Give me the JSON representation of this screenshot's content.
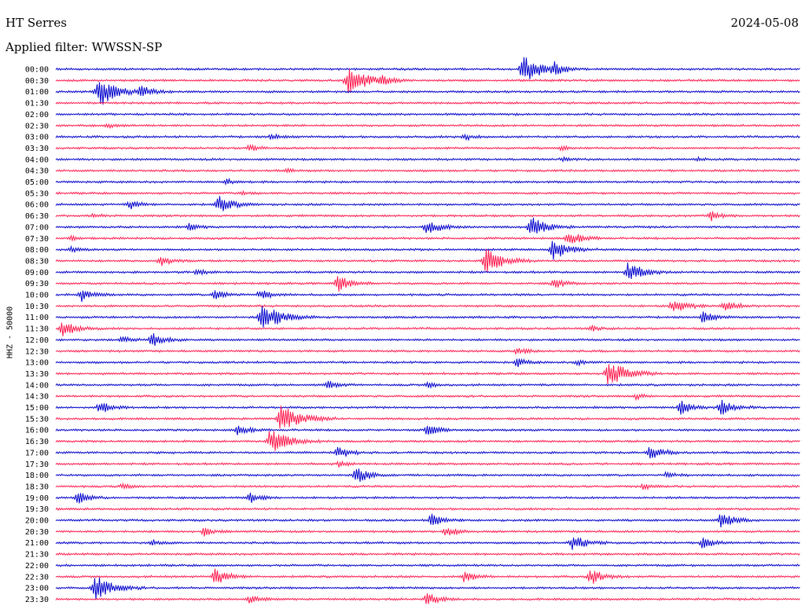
{
  "header": {
    "station": "HT Serres",
    "date": "2024-05-08",
    "filter": "Applied filter: WWSSN-SP"
  },
  "chart_data": {
    "type": "line",
    "title": "HT Serres",
    "subtitle": "Applied filter: WWSSN-SP",
    "ylabel": "HHZ - 50000",
    "grid": false,
    "legend": "none",
    "colors": {
      "even": "#0000cc",
      "odd": "#ff1a4d"
    },
    "rows": [
      {
        "label": "00:00",
        "events": [
          [
            0.63,
            1.0
          ],
          [
            0.67,
            0.35
          ]
        ]
      },
      {
        "label": "00:30",
        "events": [
          [
            0.395,
            1.0
          ],
          [
            0.44,
            0.25
          ]
        ]
      },
      {
        "label": "01:00",
        "events": [
          [
            0.06,
            1.0
          ],
          [
            0.115,
            0.4
          ]
        ]
      },
      {
        "label": "01:30",
        "events": []
      },
      {
        "label": "02:00",
        "events": []
      },
      {
        "label": "02:30",
        "events": [
          [
            0.07,
            0.15
          ]
        ]
      },
      {
        "label": "03:00",
        "events": [
          [
            0.29,
            0.2
          ],
          [
            0.55,
            0.25
          ]
        ]
      },
      {
        "label": "03:30",
        "events": [
          [
            0.26,
            0.25
          ],
          [
            0.68,
            0.15
          ]
        ]
      },
      {
        "label": "04:00",
        "events": [
          [
            0.68,
            0.15
          ],
          [
            0.86,
            0.12
          ]
        ]
      },
      {
        "label": "04:30",
        "events": [
          [
            0.31,
            0.12
          ]
        ]
      },
      {
        "label": "05:00",
        "events": [
          [
            0.23,
            0.2
          ]
        ]
      },
      {
        "label": "05:30",
        "events": [
          [
            0.25,
            0.15
          ]
        ]
      },
      {
        "label": "06:00",
        "events": [
          [
            0.1,
            0.3
          ],
          [
            0.22,
            0.6
          ]
        ]
      },
      {
        "label": "06:30",
        "events": [
          [
            0.05,
            0.15
          ],
          [
            0.88,
            0.35
          ]
        ]
      },
      {
        "label": "07:00",
        "events": [
          [
            0.18,
            0.25
          ],
          [
            0.5,
            0.55
          ],
          [
            0.64,
            0.7
          ]
        ]
      },
      {
        "label": "07:30",
        "events": [
          [
            0.69,
            0.55
          ],
          [
            0.02,
            0.15
          ]
        ]
      },
      {
        "label": "08:00",
        "events": [
          [
            0.67,
            0.75
          ],
          [
            0.02,
            0.2
          ]
        ]
      },
      {
        "label": "08:30",
        "events": [
          [
            0.14,
            0.35
          ],
          [
            0.58,
            0.85
          ]
        ]
      },
      {
        "label": "09:00",
        "events": [
          [
            0.77,
            0.7
          ],
          [
            0.19,
            0.2
          ]
        ]
      },
      {
        "label": "09:30",
        "events": [
          [
            0.38,
            0.55
          ],
          [
            0.67,
            0.35
          ]
        ]
      },
      {
        "label": "10:00",
        "events": [
          [
            0.035,
            0.45
          ],
          [
            0.215,
            0.4
          ],
          [
            0.275,
            0.35
          ]
        ]
      },
      {
        "label": "10:30",
        "events": [
          [
            0.83,
            0.55
          ],
          [
            0.9,
            0.45
          ]
        ]
      },
      {
        "label": "11:00",
        "events": [
          [
            0.28,
            1.0
          ],
          [
            0.87,
            0.4
          ]
        ]
      },
      {
        "label": "11:30",
        "events": [
          [
            0.01,
            0.55
          ],
          [
            0.72,
            0.2
          ]
        ]
      },
      {
        "label": "12:00",
        "events": [
          [
            0.13,
            0.5
          ],
          [
            0.09,
            0.25
          ]
        ]
      },
      {
        "label": "12:30",
        "events": [
          [
            0.62,
            0.3
          ]
        ]
      },
      {
        "label": "13:00",
        "events": [
          [
            0.62,
            0.3
          ],
          [
            0.7,
            0.2
          ]
        ]
      },
      {
        "label": "13:30",
        "events": [
          [
            0.745,
            0.95
          ]
        ]
      },
      {
        "label": "14:00",
        "events": [
          [
            0.365,
            0.3
          ],
          [
            0.5,
            0.25
          ]
        ]
      },
      {
        "label": "14:30",
        "events": [
          [
            0.78,
            0.2
          ]
        ]
      },
      {
        "label": "15:00",
        "events": [
          [
            0.06,
            0.45
          ],
          [
            0.84,
            0.45
          ],
          [
            0.895,
            0.5
          ]
        ]
      },
      {
        "label": "15:30",
        "events": [
          [
            0.305,
            1.0
          ]
        ]
      },
      {
        "label": "16:00",
        "events": [
          [
            0.245,
            0.4
          ],
          [
            0.5,
            0.4
          ]
        ]
      },
      {
        "label": "16:30",
        "events": [
          [
            0.29,
            0.9
          ]
        ]
      },
      {
        "label": "17:00",
        "events": [
          [
            0.38,
            0.45
          ],
          [
            0.8,
            0.55
          ]
        ]
      },
      {
        "label": "17:30",
        "events": [
          [
            0.38,
            0.2
          ]
        ]
      },
      {
        "label": "18:00",
        "events": [
          [
            0.405,
            0.6
          ],
          [
            0.82,
            0.2
          ]
        ]
      },
      {
        "label": "18:30",
        "events": [
          [
            0.09,
            0.2
          ],
          [
            0.79,
            0.2
          ]
        ]
      },
      {
        "label": "19:00",
        "events": [
          [
            0.03,
            0.4
          ],
          [
            0.26,
            0.4
          ]
        ]
      },
      {
        "label": "19:30",
        "events": []
      },
      {
        "label": "20:00",
        "events": [
          [
            0.505,
            0.45
          ],
          [
            0.895,
            0.55
          ]
        ]
      },
      {
        "label": "20:30",
        "events": [
          [
            0.2,
            0.3
          ],
          [
            0.525,
            0.4
          ]
        ]
      },
      {
        "label": "21:00",
        "events": [
          [
            0.695,
            0.6
          ],
          [
            0.87,
            0.4
          ],
          [
            0.13,
            0.2
          ]
        ]
      },
      {
        "label": "21:30",
        "events": []
      },
      {
        "label": "22:00",
        "events": []
      },
      {
        "label": "22:30",
        "events": [
          [
            0.215,
            0.55
          ],
          [
            0.55,
            0.4
          ],
          [
            0.72,
            0.55
          ]
        ]
      },
      {
        "label": "23:00",
        "events": [
          [
            0.055,
            0.85
          ]
        ]
      },
      {
        "label": "23:30",
        "events": [
          [
            0.26,
            0.3
          ],
          [
            0.5,
            0.45
          ]
        ]
      }
    ]
  }
}
